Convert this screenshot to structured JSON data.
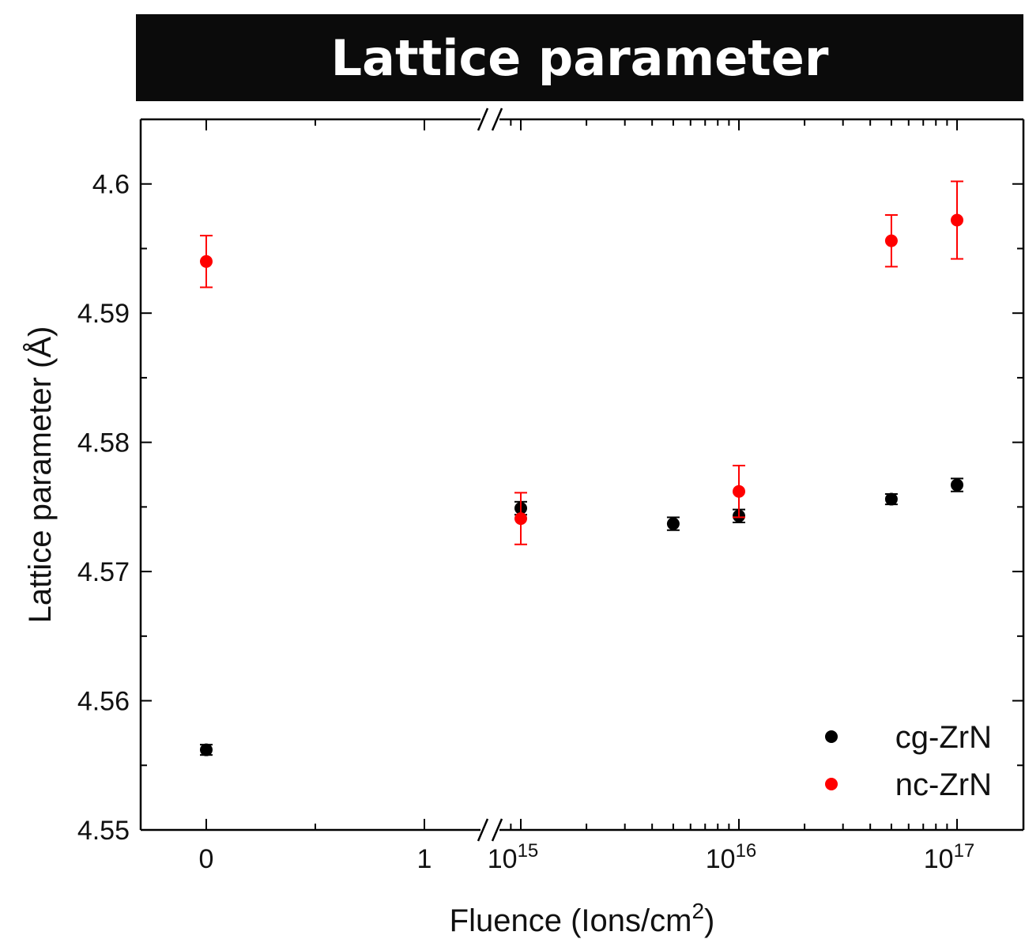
{
  "title": "Lattice parameter",
  "chart_data": {
    "type": "scatter",
    "title": "Lattice parameter",
    "xlabel": "Fluence (Ions/cm",
    "xlabel_sup": "2",
    "xlabel_end": ")",
    "ylabel": "Lattice parameter (Å)",
    "ylim": [
      4.55,
      4.605
    ],
    "y_ticks": [
      "4.55",
      "4.56",
      "4.57",
      "4.58",
      "4.59",
      "4.6"
    ],
    "x_axis": "broken: linear segment (0, 1) then log segment (1e15–2e17)",
    "x_tick_labels": [
      {
        "base": "0",
        "exp": ""
      },
      {
        "base": "1",
        "exp": ""
      },
      {
        "base": "10",
        "exp": "15"
      },
      {
        "base": "10",
        "exp": "16"
      },
      {
        "base": "10",
        "exp": "17"
      }
    ],
    "legend_position": "bottom-right",
    "series": [
      {
        "name": "cg-ZrN",
        "color": "#000000",
        "points": [
          {
            "x": 0,
            "y": 4.5562,
            "err": 0.0004
          },
          {
            "x": 1000000000000000.0,
            "y": 4.5749,
            "err": 0.0005
          },
          {
            "x": 5000000000000000.0,
            "y": 4.5737,
            "err": 0.0005
          },
          {
            "x": 1e+16,
            "y": 4.5743,
            "err": 0.0005
          },
          {
            "x": 5e+16,
            "y": 4.5756,
            "err": 0.0004
          },
          {
            "x": 1e+17,
            "y": 4.5767,
            "err": 0.0005
          }
        ]
      },
      {
        "name": "nc-ZrN",
        "color": "#ff0000",
        "points": [
          {
            "x": 0,
            "y": 4.594,
            "err": 0.002
          },
          {
            "x": 1000000000000000.0,
            "y": 4.5741,
            "err": 0.002
          },
          {
            "x": 1e+16,
            "y": 4.5762,
            "err": 0.002
          },
          {
            "x": 5e+16,
            "y": 4.5956,
            "err": 0.002
          },
          {
            "x": 1e+17,
            "y": 4.5972,
            "err": 0.003
          }
        ]
      }
    ]
  }
}
